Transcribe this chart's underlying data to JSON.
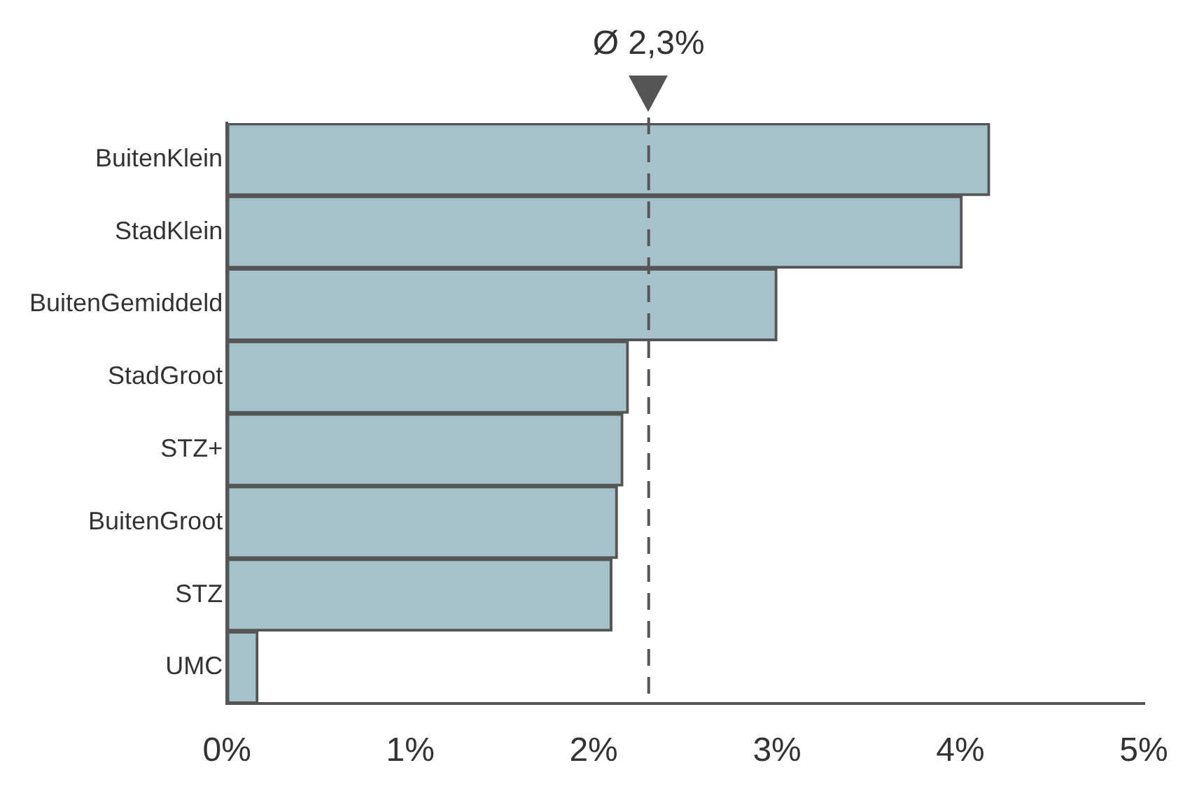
{
  "chart_data": {
    "type": "bar",
    "orientation": "horizontal",
    "categories": [
      "BuitenKlein",
      "StadKlein",
      "BuitenGemiddeld",
      "StadGroot",
      "STZ+",
      "BuitenGroot",
      "STZ",
      "UMC"
    ],
    "values": [
      4.16,
      4.01,
      3.0,
      2.19,
      2.16,
      2.13,
      2.1,
      0.17
    ],
    "color": "#a5c1ca",
    "xlim": [
      0,
      5
    ],
    "xticks": [
      {
        "value": 0,
        "label": "0%"
      },
      {
        "value": 1,
        "label": "1%"
      },
      {
        "value": 2,
        "label": "2%"
      },
      {
        "value": 3,
        "label": "3%"
      },
      {
        "value": 4,
        "label": "4%"
      },
      {
        "value": 5,
        "label": "5%"
      }
    ],
    "ref_lines": [
      {
        "axis": "x",
        "value": 2.3,
        "label": "Ø 2,3%",
        "color": "#555555",
        "line_style": "dashed"
      }
    ],
    "grid": false,
    "legend": false
  }
}
